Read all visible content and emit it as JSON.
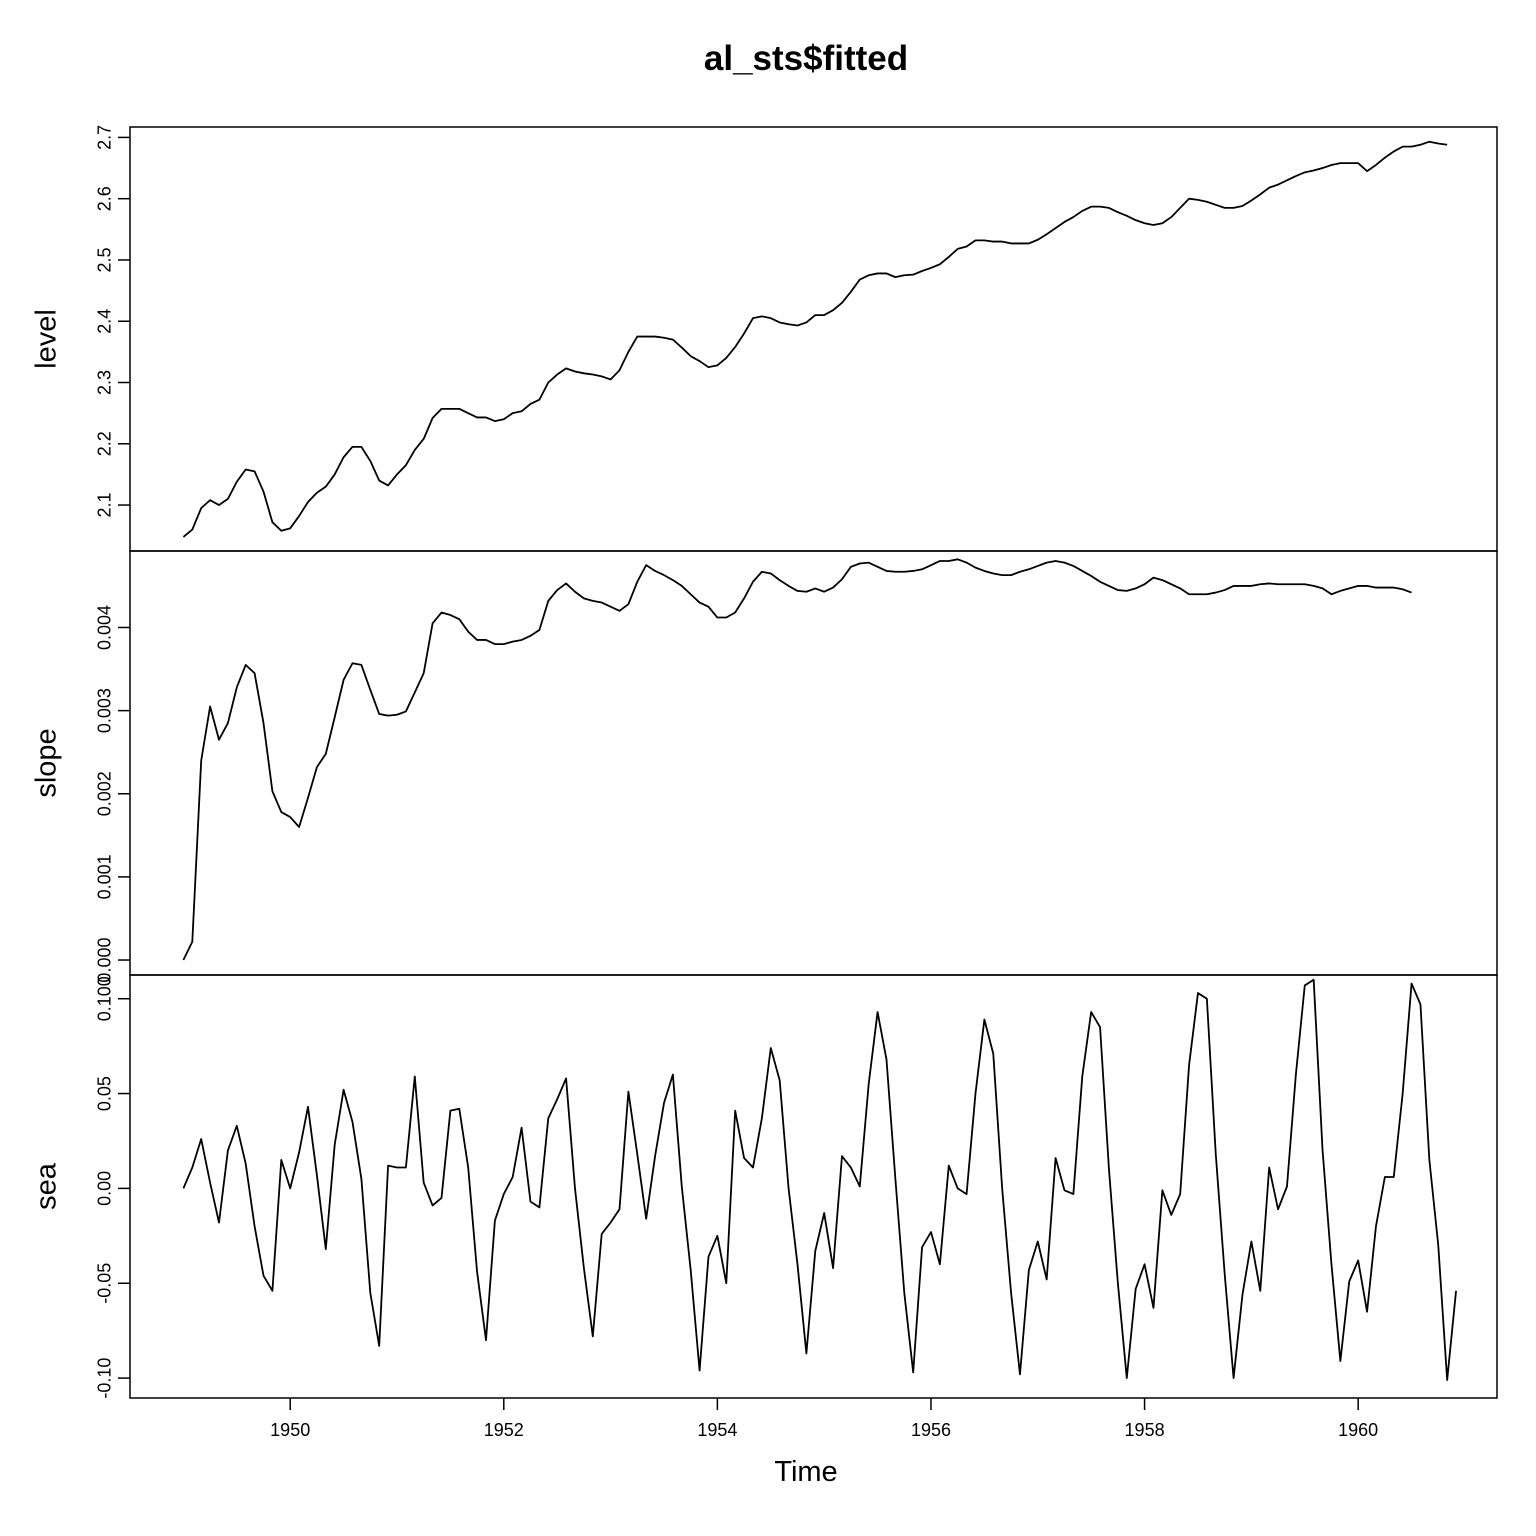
{
  "chart_data": {
    "type": "line",
    "title": "al_sts$fitted",
    "xlabel": "Time",
    "x_start": 1949,
    "x_frequency": 12,
    "xlim": [
      1948.5,
      1961.3
    ],
    "x_ticks": [
      1950,
      1952,
      1954,
      1956,
      1958,
      1960
    ],
    "grid": false,
    "panels": [
      {
        "name": "level",
        "ylabel": "level",
        "ylim": [
          2.025,
          2.717
        ],
        "y_ticks": [
          "2.1",
          "2.2",
          "2.3",
          "2.4",
          "2.5",
          "2.6",
          "2.7"
        ],
        "values": [
          2.048,
          2.06,
          2.095,
          2.108,
          2.1,
          2.11,
          2.138,
          2.158,
          2.155,
          2.122,
          2.072,
          2.058,
          2.062,
          2.082,
          2.105,
          2.12,
          2.13,
          2.15,
          2.178,
          2.195,
          2.195,
          2.172,
          2.14,
          2.132,
          2.15,
          2.165,
          2.19,
          2.208,
          2.242,
          2.257,
          2.257,
          2.257,
          2.25,
          2.243,
          2.243,
          2.237,
          2.24,
          2.25,
          2.253,
          2.265,
          2.272,
          2.3,
          2.313,
          2.323,
          2.318,
          2.315,
          2.313,
          2.31,
          2.305,
          2.32,
          2.35,
          2.375,
          2.375,
          2.375,
          2.373,
          2.37,
          2.357,
          2.343,
          2.335,
          2.325,
          2.328,
          2.34,
          2.358,
          2.38,
          2.405,
          2.408,
          2.405,
          2.398,
          2.395,
          2.393,
          2.398,
          2.41,
          2.41,
          2.418,
          2.43,
          2.448,
          2.468,
          2.475,
          2.478,
          2.478,
          2.472,
          2.475,
          2.476,
          2.482,
          2.487,
          2.493,
          2.505,
          2.518,
          2.522,
          2.532,
          2.532,
          2.53,
          2.53,
          2.527,
          2.527,
          2.527,
          2.533,
          2.542,
          2.552,
          2.562,
          2.57,
          2.58,
          2.587,
          2.587,
          2.585,
          2.578,
          2.572,
          2.565,
          2.56,
          2.557,
          2.56,
          2.57,
          2.585,
          2.6,
          2.598,
          2.595,
          2.59,
          2.585,
          2.585,
          2.588,
          2.597,
          2.607,
          2.618,
          2.623,
          2.63,
          2.637,
          2.643,
          2.646,
          2.65,
          2.655,
          2.658,
          2.658,
          2.658,
          2.645,
          2.655,
          2.667,
          2.677,
          2.685,
          2.685,
          2.688,
          2.693,
          2.69,
          2.688
        ]
      },
      {
        "name": "slope",
        "ylabel": "slope",
        "ylim": [
          -0.00018,
          0.00492
        ],
        "y_ticks": [
          "0.000",
          "0.001",
          "0.002",
          "0.003",
          "0.004"
        ],
        "values": [
          0.0,
          0.00022,
          0.0024,
          0.00305,
          0.00265,
          0.00285,
          0.00328,
          0.00355,
          0.00345,
          0.00285,
          0.00203,
          0.00178,
          0.00172,
          0.0016,
          0.00195,
          0.00232,
          0.00248,
          0.00292,
          0.00337,
          0.00357,
          0.00355,
          0.00325,
          0.00296,
          0.00294,
          0.00295,
          0.00299,
          0.00322,
          0.00345,
          0.00405,
          0.00418,
          0.00415,
          0.0041,
          0.00395,
          0.00385,
          0.00385,
          0.0038,
          0.0038,
          0.00383,
          0.00385,
          0.0039,
          0.00397,
          0.00432,
          0.00445,
          0.00453,
          0.00443,
          0.00435,
          0.00432,
          0.0043,
          0.00425,
          0.0042,
          0.00428,
          0.00455,
          0.00475,
          0.00468,
          0.00463,
          0.00457,
          0.0045,
          0.0044,
          0.0043,
          0.00425,
          0.00412,
          0.00412,
          0.00418,
          0.00435,
          0.00455,
          0.00467,
          0.00465,
          0.00457,
          0.0045,
          0.00444,
          0.00443,
          0.00447,
          0.00443,
          0.00448,
          0.00458,
          0.00473,
          0.00477,
          0.00478,
          0.00473,
          0.00468,
          0.00467,
          0.00467,
          0.00468,
          0.0047,
          0.00475,
          0.0048,
          0.0048,
          0.00482,
          0.00478,
          0.00472,
          0.00468,
          0.00465,
          0.00463,
          0.00463,
          0.00467,
          0.0047,
          0.00474,
          0.00478,
          0.0048,
          0.00478,
          0.00474,
          0.00468,
          0.00462,
          0.00455,
          0.0045,
          0.00445,
          0.00444,
          0.00447,
          0.00452,
          0.0046,
          0.00457,
          0.00452,
          0.00447,
          0.0044,
          0.0044,
          0.0044,
          0.00442,
          0.00445,
          0.0045,
          0.0045,
          0.0045,
          0.00452,
          0.00453,
          0.00452,
          0.00452,
          0.00452,
          0.00452,
          0.0045,
          0.00447,
          0.0044,
          0.00444,
          0.00447,
          0.0045,
          0.0045,
          0.00448,
          0.00448,
          0.00448,
          0.00446,
          0.00442
        ]
      },
      {
        "name": "sea",
        "ylabel": "sea",
        "ylim": [
          -0.1105,
          0.1125
        ],
        "y_ticks": [
          "-0.10",
          "-0.05",
          "0.00",
          "0.05",
          "0.100"
        ],
        "values": [
          0.0,
          0.011,
          0.026,
          0.003,
          -0.018,
          0.02,
          0.033,
          0.013,
          -0.02,
          -0.046,
          -0.054,
          0.015,
          0.0,
          0.019,
          0.043,
          0.007,
          -0.032,
          0.023,
          0.052,
          0.035,
          0.005,
          -0.055,
          -0.083,
          0.012,
          0.011,
          0.011,
          0.059,
          0.003,
          -0.009,
          -0.005,
          0.041,
          0.042,
          0.011,
          -0.044,
          -0.08,
          -0.017,
          -0.003,
          0.006,
          0.032,
          -0.007,
          -0.01,
          0.037,
          0.047,
          0.058,
          0.0,
          -0.042,
          -0.078,
          -0.024,
          -0.018,
          -0.011,
          0.051,
          0.018,
          -0.016,
          0.017,
          0.045,
          0.06,
          0.001,
          -0.043,
          -0.096,
          -0.036,
          -0.025,
          -0.05,
          0.041,
          0.016,
          0.011,
          0.037,
          0.074,
          0.057,
          0.0,
          -0.04,
          -0.087,
          -0.033,
          -0.013,
          -0.042,
          0.017,
          0.011,
          0.001,
          0.055,
          0.093,
          0.068,
          0.005,
          -0.055,
          -0.097,
          -0.031,
          -0.023,
          -0.04,
          0.012,
          0.0,
          -0.003,
          0.05,
          0.089,
          0.071,
          0.0,
          -0.055,
          -0.098,
          -0.043,
          -0.028,
          -0.048,
          0.016,
          -0.001,
          -0.003,
          0.059,
          0.093,
          0.085,
          0.01,
          -0.05,
          -0.1,
          -0.053,
          -0.04,
          -0.063,
          -0.001,
          -0.014,
          -0.003,
          0.065,
          0.103,
          0.1,
          0.018,
          -0.045,
          -0.1,
          -0.056,
          -0.028,
          -0.054,
          0.011,
          -0.011,
          0.001,
          0.06,
          0.107,
          0.11,
          0.02,
          -0.04,
          -0.091,
          -0.049,
          -0.038,
          -0.065,
          -0.02,
          0.006,
          0.006,
          0.05,
          0.108,
          0.097,
          0.015,
          -0.03,
          -0.101,
          -0.054
        ]
      }
    ]
  }
}
